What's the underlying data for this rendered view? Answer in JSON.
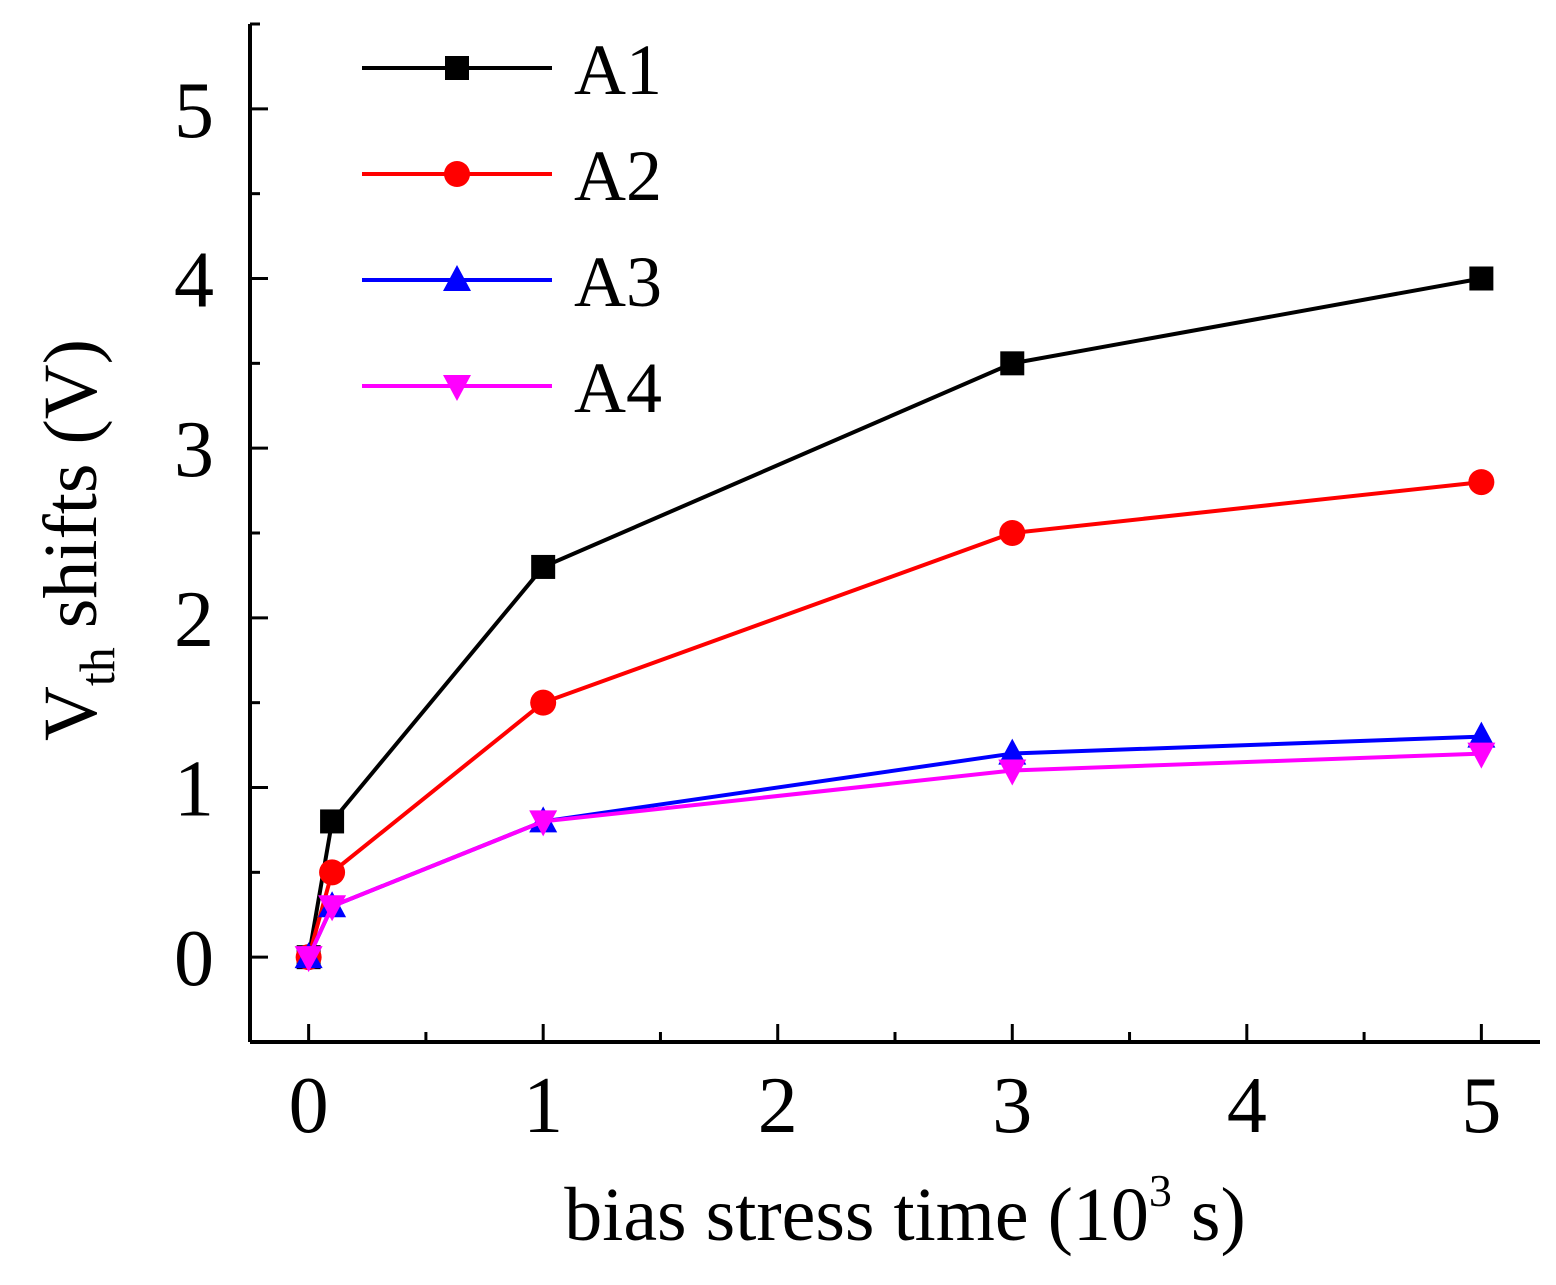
{
  "chart_data": {
    "type": "line",
    "title": "",
    "xlabel": "bias stress time (10",
    "xlabel_exp": "3",
    "xlabel_unit": " s)",
    "ylabel": "V",
    "ylabel_sub": "th",
    "ylabel_rest": " shifts (V)",
    "xlim": [
      -0.25,
      5.25
    ],
    "ylim": [
      -0.5,
      5.5
    ],
    "x_ticks": [
      0,
      1,
      2,
      3,
      4,
      5
    ],
    "x_tick_labels": [
      "0",
      "1",
      "2",
      "3",
      "4",
      "5"
    ],
    "y_ticks": [
      0,
      1,
      2,
      3,
      4,
      5
    ],
    "y_tick_labels": [
      "0",
      "1",
      "2",
      "3",
      "4",
      "5"
    ],
    "grid": false,
    "legend_position": "top-left",
    "x": [
      0,
      0.1,
      1,
      3,
      5
    ],
    "series": [
      {
        "name": "A1",
        "color": "#000000",
        "marker": "square",
        "values": [
          0,
          0.8,
          2.3,
          3.5,
          4.0
        ]
      },
      {
        "name": "A2",
        "color": "#ff0000",
        "marker": "circle",
        "values": [
          0,
          0.5,
          1.5,
          2.5,
          2.8
        ]
      },
      {
        "name": "A3",
        "color": "#0000ff",
        "marker": "triangle-up",
        "values": [
          0,
          0.3,
          0.8,
          1.2,
          1.3
        ]
      },
      {
        "name": "A4",
        "color": "#ff00ff",
        "marker": "triangle-down",
        "values": [
          0,
          0.3,
          0.8,
          1.1,
          1.2
        ]
      }
    ]
  }
}
